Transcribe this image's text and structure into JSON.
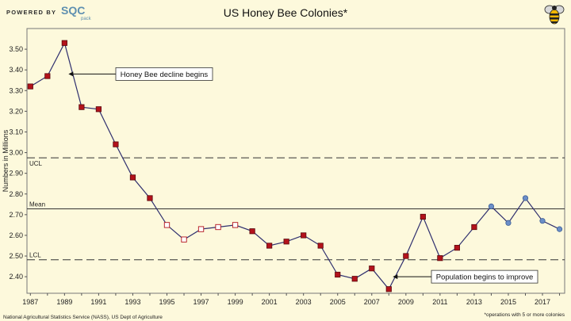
{
  "header": {
    "powered_by": "POWERED BY",
    "logo_text": "SQC",
    "logo_sub": "pack",
    "title": "US Honey Bee Colonies*",
    "icon": "bee-icon"
  },
  "footer": {
    "source": "National Agricultural Statistics Service (NASS), US Dept of Agriculture",
    "note": "*operations with 5 or more colonies"
  },
  "colors": {
    "background": "#fdf9dc",
    "line": "#2f2f6e",
    "marker_out": "#b3121b",
    "marker_in": "#ffffff",
    "marker_trend": "#6b8ec8"
  },
  "chart_data": {
    "type": "line",
    "title": "US Honey Bee Colonies*",
    "ylabel": "Numbers in Millions",
    "xlabel": "",
    "x": [
      1987,
      1988,
      1989,
      1990,
      1991,
      1992,
      1993,
      1994,
      1995,
      1996,
      1997,
      1998,
      1999,
      2000,
      2001,
      2002,
      2003,
      2004,
      2005,
      2006,
      2007,
      2008,
      2009,
      2010,
      2011,
      2012,
      2013,
      2014,
      2015,
      2016,
      2017,
      2018
    ],
    "values": [
      3.32,
      3.37,
      3.53,
      3.22,
      3.21,
      3.04,
      2.88,
      2.78,
      2.65,
      2.58,
      2.63,
      2.64,
      2.65,
      2.62,
      2.55,
      2.57,
      2.6,
      2.55,
      2.41,
      2.39,
      2.44,
      2.34,
      2.5,
      2.69,
      2.49,
      2.54,
      2.64,
      2.74,
      2.66,
      2.78,
      2.67,
      2.63
    ],
    "marker_status": [
      "out",
      "out",
      "out",
      "out",
      "out",
      "out",
      "out",
      "out",
      "in",
      "in",
      "in",
      "in",
      "in",
      "out",
      "out",
      "out",
      "out",
      "out",
      "out",
      "out",
      "out",
      "out",
      "out",
      "out",
      "out",
      "out",
      "out",
      "trend",
      "trend",
      "trend",
      "trend",
      "trend"
    ],
    "xticks": [
      1987,
      1989,
      1991,
      1993,
      1995,
      1997,
      1999,
      2001,
      2003,
      2005,
      2007,
      2009,
      2011,
      2013,
      2015,
      2017
    ],
    "yticks": [
      "2.40",
      "2.50",
      "2.60",
      "2.70",
      "2.80",
      "2.90",
      "3.00",
      "3.10",
      "3.20",
      "3.30",
      "3.40",
      "3.50"
    ],
    "ylim": [
      2.32,
      3.6
    ],
    "xlim": [
      1986.8,
      2018.3
    ],
    "control_lines": [
      {
        "label": "UCL",
        "value": 2.975,
        "style": "dashed"
      },
      {
        "label": "Mean",
        "value": 2.728,
        "style": "solid"
      },
      {
        "label": "LCL",
        "value": 2.482,
        "style": "dashed"
      }
    ],
    "annotations": [
      {
        "text": "Honey Bee decline begins",
        "x": 1989,
        "y": 3.53
      },
      {
        "text": "Population begins to improve",
        "x": 2008,
        "y": 2.34
      }
    ],
    "grid": false,
    "legend": "none"
  }
}
